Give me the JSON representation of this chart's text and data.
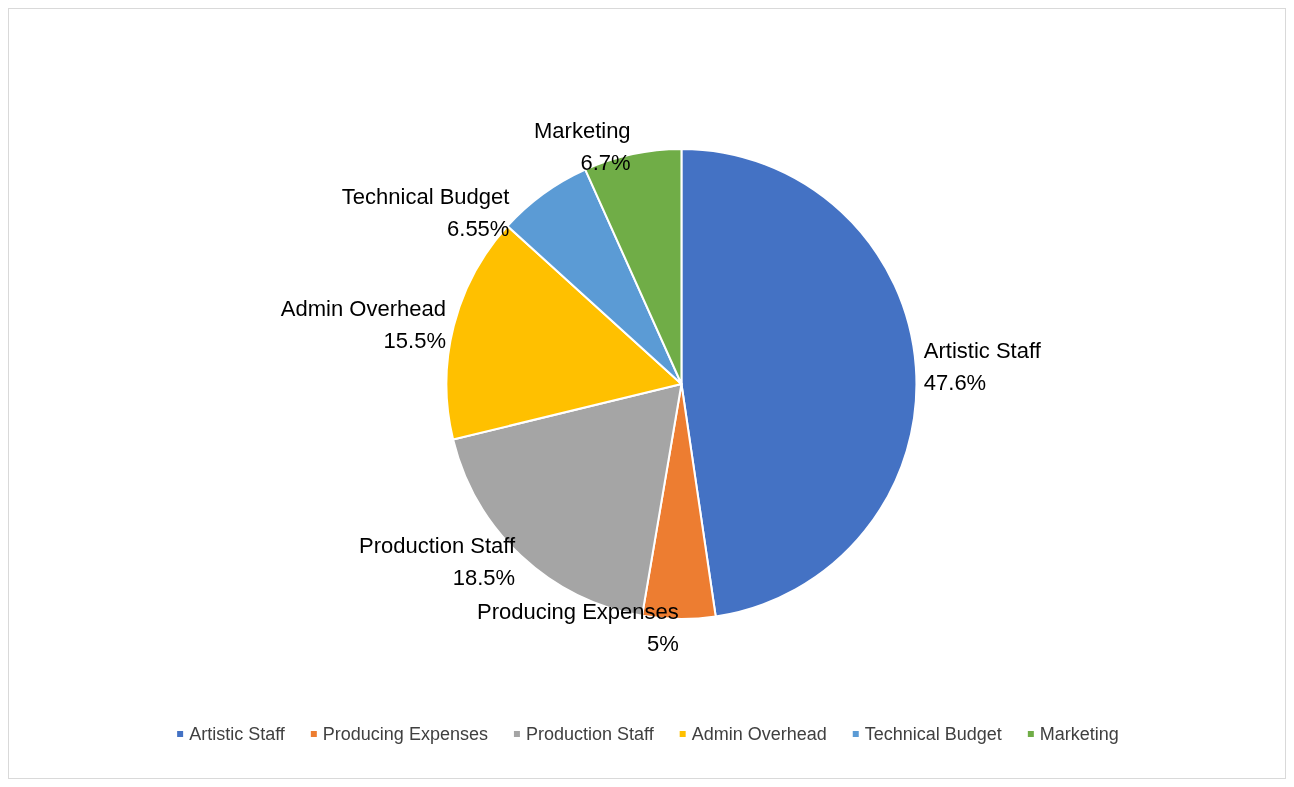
{
  "chart_data": {
    "type": "pie",
    "categories": [
      "Artistic Staff",
      "Producing Expenses",
      "Production Staff",
      "Admin Overhead",
      "Technical Budget",
      "Marketing"
    ],
    "values": [
      47.6,
      5,
      18.5,
      15.5,
      6.55,
      6.7
    ],
    "colors": [
      "#4472c4",
      "#ed7d31",
      "#a5a5a5",
      "#ffc000",
      "#5b9bd5",
      "#70ad47"
    ],
    "value_labels": [
      "47.6%",
      "5%",
      "18.5%",
      "15.5%",
      "6.55%",
      "6.7%"
    ],
    "legend": "bottom"
  }
}
